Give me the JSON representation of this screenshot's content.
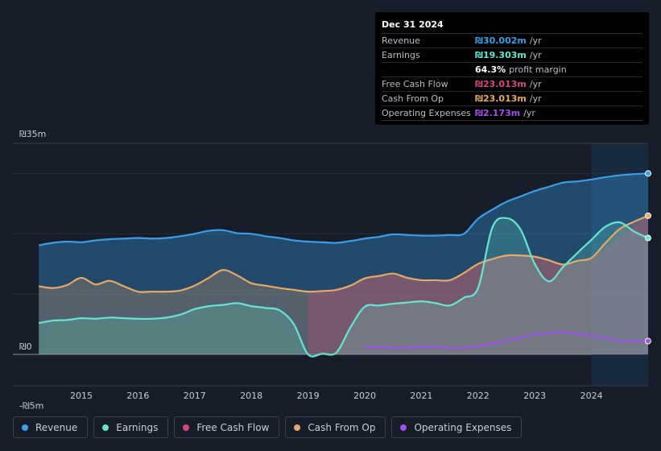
{
  "tooltip": {
    "date": "Dec 31 2024",
    "rows": [
      {
        "label": "Revenue",
        "value": "₪30.002m",
        "unit": "/yr"
      },
      {
        "label": "Earnings",
        "value": "₪19.303m",
        "unit": "/yr"
      },
      {
        "label": "",
        "value": "64.3%",
        "unit": "profit margin"
      },
      {
        "label": "Free Cash Flow",
        "value": "₪23.013m",
        "unit": "/yr"
      },
      {
        "label": "Cash From Op",
        "value": "₪23.013m",
        "unit": "/yr"
      },
      {
        "label": "Operating Expenses",
        "value": "₪2.173m",
        "unit": "/yr"
      }
    ]
  },
  "legend": [
    {
      "label": "Revenue",
      "color": "#3b9ee8"
    },
    {
      "label": "Earnings",
      "color": "#67e6cf"
    },
    {
      "label": "Free Cash Flow",
      "color": "#d4477f"
    },
    {
      "label": "Cash From Op",
      "color": "#e8a867"
    },
    {
      "label": "Operating Expenses",
      "color": "#a24ff0"
    }
  ],
  "chart_data": {
    "type": "area",
    "title": "",
    "xlabel": "",
    "ylabel": "",
    "ylim": [
      -5,
      35
    ],
    "y_tick_labels": [
      "₪35m",
      "₪0",
      "-₪5m"
    ],
    "y_ticks": [
      35,
      0,
      -5
    ],
    "x_tick_labels": [
      "2015",
      "2016",
      "2017",
      "2018",
      "2019",
      "2020",
      "2021",
      "2022",
      "2023",
      "2024"
    ],
    "x_ticks": [
      2015,
      2016,
      2017,
      2018,
      2019,
      2020,
      2021,
      2022,
      2023,
      2024
    ],
    "highlight_from": 2024.0,
    "series": [
      {
        "name": "Revenue",
        "color": "#3b9ee8",
        "fill": true,
        "points": [
          [
            2014.25,
            18.1
          ],
          [
            2014.5,
            18.5
          ],
          [
            2014.75,
            18.7
          ],
          [
            2015.0,
            18.6
          ],
          [
            2015.25,
            18.9
          ],
          [
            2015.5,
            19.1
          ],
          [
            2015.75,
            19.2
          ],
          [
            2016.0,
            19.3
          ],
          [
            2016.25,
            19.2
          ],
          [
            2016.5,
            19.3
          ],
          [
            2016.75,
            19.6
          ],
          [
            2017.0,
            20.0
          ],
          [
            2017.25,
            20.5
          ],
          [
            2017.5,
            20.6
          ],
          [
            2017.75,
            20.1
          ],
          [
            2018.0,
            20.0
          ],
          [
            2018.25,
            19.6
          ],
          [
            2018.5,
            19.3
          ],
          [
            2018.75,
            18.9
          ],
          [
            2019.0,
            18.7
          ],
          [
            2019.25,
            18.6
          ],
          [
            2019.5,
            18.5
          ],
          [
            2019.75,
            18.8
          ],
          [
            2020.0,
            19.2
          ],
          [
            2020.25,
            19.5
          ],
          [
            2020.5,
            19.9
          ],
          [
            2020.75,
            19.8
          ],
          [
            2021.0,
            19.7
          ],
          [
            2021.25,
            19.7
          ],
          [
            2021.5,
            19.8
          ],
          [
            2021.75,
            20.0
          ],
          [
            2022.0,
            22.5
          ],
          [
            2022.25,
            24.0
          ],
          [
            2022.5,
            25.3
          ],
          [
            2022.75,
            26.2
          ],
          [
            2023.0,
            27.1
          ],
          [
            2023.25,
            27.8
          ],
          [
            2023.5,
            28.5
          ],
          [
            2023.75,
            28.7
          ],
          [
            2024.0,
            29.0
          ],
          [
            2024.25,
            29.4
          ],
          [
            2024.5,
            29.7
          ],
          [
            2024.75,
            29.9
          ],
          [
            2025.0,
            30.0
          ]
        ]
      },
      {
        "name": "Earnings",
        "color": "#67e6cf",
        "fill": true,
        "points": [
          [
            2014.25,
            5.2
          ],
          [
            2014.5,
            5.6
          ],
          [
            2014.75,
            5.7
          ],
          [
            2015.0,
            6.0
          ],
          [
            2015.25,
            5.9
          ],
          [
            2015.5,
            6.1
          ],
          [
            2015.75,
            6.0
          ],
          [
            2016.0,
            5.9
          ],
          [
            2016.25,
            5.9
          ],
          [
            2016.5,
            6.1
          ],
          [
            2016.75,
            6.6
          ],
          [
            2017.0,
            7.5
          ],
          [
            2017.25,
            8.0
          ],
          [
            2017.5,
            8.2
          ],
          [
            2017.75,
            8.5
          ],
          [
            2018.0,
            8.0
          ],
          [
            2018.25,
            7.7
          ],
          [
            2018.5,
            7.3
          ],
          [
            2018.75,
            5.0
          ],
          [
            2019.0,
            0.0
          ],
          [
            2019.25,
            0.1
          ],
          [
            2019.5,
            0.3
          ],
          [
            2019.75,
            4.5
          ],
          [
            2020.0,
            7.9
          ],
          [
            2020.25,
            8.1
          ],
          [
            2020.5,
            8.4
          ],
          [
            2020.75,
            8.6
          ],
          [
            2021.0,
            8.8
          ],
          [
            2021.25,
            8.5
          ],
          [
            2021.5,
            8.1
          ],
          [
            2021.75,
            9.4
          ],
          [
            2022.0,
            11.0
          ],
          [
            2022.25,
            21.0
          ],
          [
            2022.5,
            22.6
          ],
          [
            2022.75,
            20.7
          ],
          [
            2023.0,
            15.0
          ],
          [
            2023.25,
            12.1
          ],
          [
            2023.5,
            14.5
          ],
          [
            2023.75,
            16.8
          ],
          [
            2024.0,
            19.0
          ],
          [
            2024.25,
            21.2
          ],
          [
            2024.5,
            21.9
          ],
          [
            2024.75,
            20.4
          ],
          [
            2025.0,
            19.3
          ]
        ]
      },
      {
        "name": "Free Cash Flow",
        "color": "#d4477f",
        "fill": true,
        "points": [
          [
            2019.0,
            10.4
          ],
          [
            2019.5,
            10.6
          ],
          [
            2020.0,
            12.5
          ],
          [
            2020.5,
            13.4
          ],
          [
            2021.0,
            12.2
          ],
          [
            2021.5,
            12.3
          ],
          [
            2022.0,
            15.0
          ],
          [
            2022.5,
            16.4
          ],
          [
            2023.0,
            16.2
          ],
          [
            2023.5,
            15.0
          ],
          [
            2024.0,
            16.0
          ],
          [
            2025.0,
            23.0
          ]
        ]
      },
      {
        "name": "Cash From Op",
        "color": "#e8a867",
        "fill": true,
        "points": [
          [
            2014.25,
            11.3
          ],
          [
            2014.5,
            11.0
          ],
          [
            2014.75,
            11.5
          ],
          [
            2015.0,
            12.7
          ],
          [
            2015.25,
            11.6
          ],
          [
            2015.5,
            12.2
          ],
          [
            2015.75,
            11.3
          ],
          [
            2016.0,
            10.4
          ],
          [
            2016.25,
            10.4
          ],
          [
            2016.5,
            10.4
          ],
          [
            2016.75,
            10.6
          ],
          [
            2017.0,
            11.4
          ],
          [
            2017.25,
            12.7
          ],
          [
            2017.5,
            14.0
          ],
          [
            2017.75,
            13.1
          ],
          [
            2018.0,
            11.8
          ],
          [
            2018.25,
            11.4
          ],
          [
            2018.5,
            11.0
          ],
          [
            2018.75,
            10.7
          ],
          [
            2019.0,
            10.4
          ],
          [
            2019.25,
            10.5
          ],
          [
            2019.5,
            10.7
          ],
          [
            2019.75,
            11.4
          ],
          [
            2020.0,
            12.6
          ],
          [
            2020.25,
            13.0
          ],
          [
            2020.5,
            13.4
          ],
          [
            2020.75,
            12.7
          ],
          [
            2021.0,
            12.3
          ],
          [
            2021.25,
            12.3
          ],
          [
            2021.5,
            12.3
          ],
          [
            2021.75,
            13.5
          ],
          [
            2022.0,
            15.0
          ],
          [
            2022.25,
            15.8
          ],
          [
            2022.5,
            16.4
          ],
          [
            2022.75,
            16.4
          ],
          [
            2023.0,
            16.2
          ],
          [
            2023.25,
            15.6
          ],
          [
            2023.5,
            14.9
          ],
          [
            2023.75,
            15.5
          ],
          [
            2024.0,
            16.0
          ],
          [
            2024.25,
            18.5
          ],
          [
            2024.5,
            20.8
          ],
          [
            2024.75,
            22.0
          ],
          [
            2025.0,
            23.0
          ]
        ]
      },
      {
        "name": "Operating Expenses",
        "color": "#a24ff0",
        "fill": false,
        "points": [
          [
            2020.0,
            1.2
          ],
          [
            2020.25,
            1.2
          ],
          [
            2020.5,
            1.1
          ],
          [
            2020.75,
            1.1
          ],
          [
            2021.0,
            1.2
          ],
          [
            2021.25,
            1.2
          ],
          [
            2021.5,
            1.1
          ],
          [
            2021.75,
            1.1
          ],
          [
            2022.0,
            1.3
          ],
          [
            2022.25,
            1.8
          ],
          [
            2022.5,
            2.3
          ],
          [
            2022.75,
            2.8
          ],
          [
            2023.0,
            3.3
          ],
          [
            2023.25,
            3.5
          ],
          [
            2023.5,
            3.7
          ],
          [
            2023.75,
            3.4
          ],
          [
            2024.0,
            3.1
          ],
          [
            2024.25,
            2.7
          ],
          [
            2024.5,
            2.2
          ],
          [
            2024.75,
            2.2
          ],
          [
            2025.0,
            2.2
          ]
        ]
      }
    ]
  }
}
